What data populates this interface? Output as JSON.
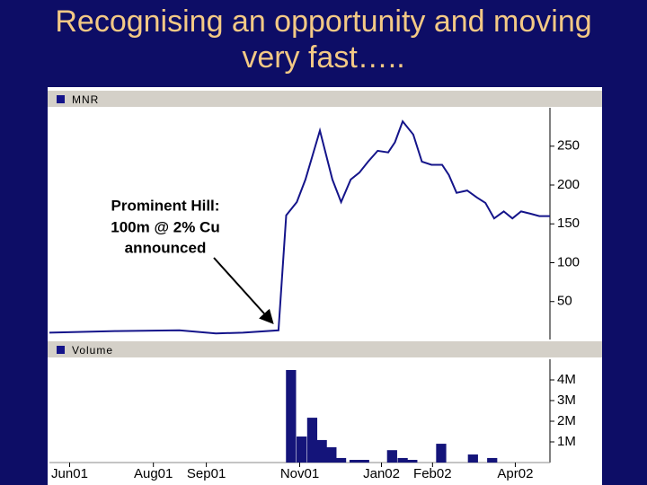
{
  "title": [
    "Recognising an opportunity and moving",
    "very fast….."
  ],
  "chart_data": [
    {
      "type": "line",
      "title": "MNR",
      "color": "#14148a",
      "annotation": [
        "Prominent Hill:",
        "100m @ 2% Cu",
        "announced"
      ],
      "xlim": [
        0,
        52
      ],
      "ylim": [
        0,
        300
      ],
      "yticks": [
        50,
        100,
        150,
        200,
        250
      ],
      "x": [
        0,
        7,
        13.5,
        17.3,
        20.1,
        23.8,
        24.6,
        25.7,
        26.6,
        28.1,
        29.4,
        30.3,
        31.3,
        32.2,
        33.1,
        34.1,
        35.2,
        35.9,
        36.7,
        37.8,
        38.7,
        39.7,
        40.8,
        41.5,
        42.3,
        43.4,
        44.4,
        45.3,
        46.2,
        47.2,
        48.1,
        49,
        50,
        50.9,
        52
      ],
      "values": [
        10,
        12,
        13,
        9,
        10,
        13,
        161,
        178,
        207,
        270,
        207,
        178,
        207,
        216,
        230,
        244,
        242,
        255,
        282,
        265,
        230,
        226,
        226,
        213,
        190,
        193,
        184,
        177,
        157,
        166,
        157,
        166,
        163,
        160,
        160
      ]
    },
    {
      "type": "bar",
      "title": "Volume",
      "color": "#14147a",
      "xlim": [
        0,
        52
      ],
      "ylim": [
        0,
        5000000
      ],
      "yticks": [
        {
          "value": 1000000,
          "label": "1M"
        },
        {
          "value": 2000000,
          "label": "2M"
        },
        {
          "value": 3000000,
          "label": "3M"
        },
        {
          "value": 4000000,
          "label": "4M"
        }
      ],
      "xticks": [
        {
          "value": 2.1,
          "label": "Jun01"
        },
        {
          "value": 10.8,
          "label": "Aug01"
        },
        {
          "value": 16.3,
          "label": "Sep01"
        },
        {
          "value": 26,
          "label": "Nov01"
        },
        {
          "value": 34.5,
          "label": "Jan02"
        },
        {
          "value": 39.8,
          "label": "Feb02"
        },
        {
          "value": 48.4,
          "label": "Apr02"
        }
      ],
      "x": [
        25.1,
        26.2,
        27.3,
        28.3,
        29.3,
        30.3,
        31.7,
        32.7,
        35.6,
        36.7,
        37.7,
        40.7,
        44,
        46
      ],
      "values": [
        4480000,
        1260000,
        2170000,
        1090000,
        740000,
        220000,
        130000,
        130000,
        600000,
        220000,
        130000,
        910000,
        390000,
        220000
      ]
    }
  ]
}
